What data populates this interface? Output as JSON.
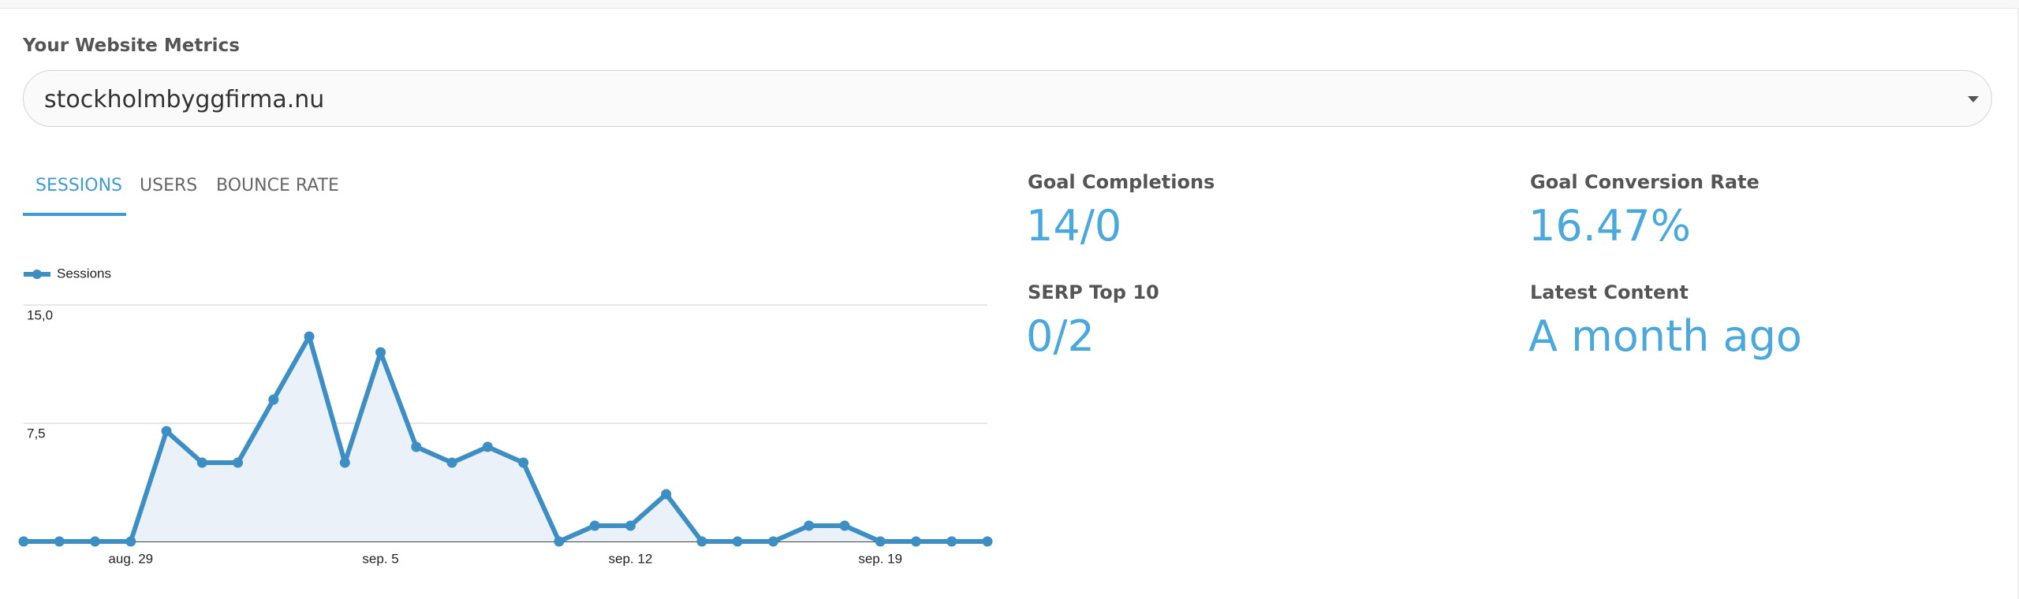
{
  "header": {
    "title": "Your Website Metrics"
  },
  "select": {
    "value": "stockholmbyggfirma.nu"
  },
  "tabs": [
    "SESSIONS",
    "USERS",
    "BOUNCE RATE"
  ],
  "stats": [
    {
      "label": "Goal Completions",
      "value": "14/0"
    },
    {
      "label": "Goal Conversion Rate",
      "value": "16.47%"
    },
    {
      "label": "SERP Top 10",
      "value": "0/2"
    },
    {
      "label": "Latest Content",
      "value": "A month ago"
    }
  ],
  "chart_data": {
    "type": "line",
    "categories": [
      null,
      null,
      null,
      "aug. 29",
      null,
      null,
      null,
      null,
      null,
      null,
      "sep. 5",
      null,
      null,
      null,
      null,
      null,
      null,
      "sep. 12",
      null,
      null,
      null,
      null,
      null,
      null,
      "sep. 19",
      null,
      null,
      null
    ],
    "series": [
      {
        "name": "Sessions",
        "color": "#3d8ec3",
        "values": [
          0,
          0,
          0,
          0,
          7,
          5,
          5,
          9,
          13,
          5,
          12,
          6,
          5,
          6,
          5,
          0,
          1,
          1,
          3,
          0,
          0,
          0,
          1,
          1,
          0,
          0,
          0,
          0
        ]
      }
    ],
    "ylim": [
      0,
      15
    ],
    "yticks": [
      {
        "value": 7.5,
        "label": "7,5"
      },
      {
        "value": 15,
        "label": "15,0"
      }
    ],
    "grid": true
  }
}
